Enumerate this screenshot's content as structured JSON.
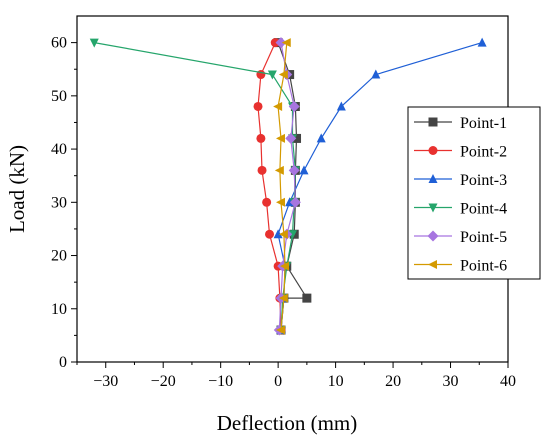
{
  "chart_data": {
    "type": "line",
    "title": "",
    "xlabel": "Deflection (mm)",
    "ylabel": "Load (kN)",
    "xlim": [
      -35,
      40
    ],
    "ylim": [
      0,
      65
    ],
    "xticks": [
      -30,
      -20,
      -10,
      0,
      10,
      20,
      30,
      40
    ],
    "yticks": [
      0,
      10,
      20,
      30,
      40,
      50,
      60
    ],
    "x_tick_labels": [
      "−30",
      "−20",
      "−10",
      "0",
      "10",
      "20",
      "30",
      "40"
    ],
    "y_tick_labels": [
      "0",
      "10",
      "20",
      "30",
      "40",
      "50",
      "60"
    ],
    "grid": false,
    "legend_position": "right",
    "series": [
      {
        "name": "Point-1",
        "color": "#444444",
        "marker": "square",
        "points": [
          [
            0.5,
            6
          ],
          [
            1,
            12
          ],
          [
            5,
            12
          ],
          [
            1.5,
            18
          ],
          [
            2.8,
            24
          ],
          [
            3,
            30
          ],
          [
            3,
            36
          ],
          [
            3.2,
            42
          ],
          [
            3,
            48
          ],
          [
            2,
            54
          ],
          [
            0,
            60
          ]
        ]
      },
      {
        "name": "Point-2",
        "color": "#e8312f",
        "marker": "circle",
        "points": [
          [
            0.5,
            6
          ],
          [
            0.3,
            12
          ],
          [
            0,
            18
          ],
          [
            -1.5,
            24
          ],
          [
            -2,
            30
          ],
          [
            -2.8,
            36
          ],
          [
            -3,
            42
          ],
          [
            -3.5,
            48
          ],
          [
            -3,
            54
          ],
          [
            -0.5,
            60
          ]
        ]
      },
      {
        "name": "Point-3",
        "color": "#1f5fd6",
        "marker": "triangle-up",
        "points": [
          [
            0.5,
            6
          ],
          [
            1,
            12
          ],
          [
            1.2,
            18
          ],
          [
            0,
            24
          ],
          [
            2,
            30
          ],
          [
            4.5,
            36
          ],
          [
            7.5,
            42
          ],
          [
            11,
            48
          ],
          [
            17,
            54
          ],
          [
            35.5,
            60
          ]
        ]
      },
      {
        "name": "Point-4",
        "color": "#25a56b",
        "marker": "triangle-down",
        "points": [
          [
            0.5,
            6
          ],
          [
            0.8,
            12
          ],
          [
            1.5,
            18
          ],
          [
            2.5,
            24
          ],
          [
            2.8,
            30
          ],
          [
            3,
            36
          ],
          [
            2.5,
            42
          ],
          [
            2.5,
            48
          ],
          [
            -1,
            54
          ],
          [
            -32,
            60
          ]
        ]
      },
      {
        "name": "Point-5",
        "color": "#a775e0",
        "marker": "diamond",
        "points": [
          [
            0.2,
            6
          ],
          [
            0.5,
            12
          ],
          [
            0.8,
            18
          ],
          [
            1.5,
            24
          ],
          [
            3,
            30
          ],
          [
            2.8,
            36
          ],
          [
            2.2,
            42
          ],
          [
            2.8,
            48
          ],
          [
            1.5,
            54
          ],
          [
            0.5,
            60
          ]
        ]
      },
      {
        "name": "Point-6",
        "color": "#d49a00",
        "marker": "triangle-left",
        "points": [
          [
            0.5,
            6
          ],
          [
            1,
            12
          ],
          [
            1.2,
            18
          ],
          [
            1,
            24
          ],
          [
            0.5,
            30
          ],
          [
            0.3,
            36
          ],
          [
            0.5,
            42
          ],
          [
            0,
            48
          ],
          [
            1,
            54
          ],
          [
            1.5,
            60
          ]
        ]
      }
    ]
  }
}
